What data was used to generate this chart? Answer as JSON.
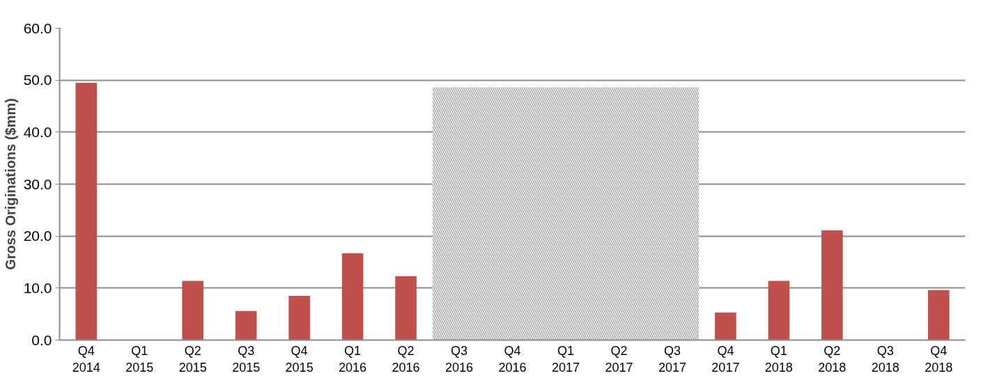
{
  "chart_data": {
    "type": "bar",
    "ylabel": "Gross Originations ($mm)",
    "categories": [
      "Q4\n2014",
      "Q1\n2015",
      "Q2\n2015",
      "Q3\n2015",
      "Q4\n2015",
      "Q1\n2016",
      "Q2\n2016",
      "Q3\n2016",
      "Q4\n2016",
      "Q1\n2017",
      "Q2\n2017",
      "Q3\n2017",
      "Q4\n2017",
      "Q1\n2018",
      "Q2\n2018",
      "Q3\n2018",
      "Q4\n2018"
    ],
    "values": [
      49.5,
      0,
      11.4,
      5.6,
      8.5,
      16.7,
      12.3,
      null,
      null,
      null,
      null,
      null,
      5.3,
      11.4,
      21.1,
      0,
      9.6
    ],
    "color": "#c0504d",
    "ylim": [
      0,
      60
    ],
    "yticks": [
      {
        "value": 0,
        "label": "0.0"
      },
      {
        "value": 10,
        "label": "10.0"
      },
      {
        "value": 20,
        "label": "20.0"
      },
      {
        "value": 30,
        "label": "30.0"
      },
      {
        "value": 40,
        "label": "40.0"
      },
      {
        "value": 50,
        "label": "50.0"
      },
      {
        "value": 60,
        "label": "60.0"
      }
    ],
    "grid": "y",
    "bands": [
      {
        "axis": "x",
        "from": "Q3\n2016",
        "to": "Q3\n2017",
        "color": "#a6a6a6"
      }
    ]
  }
}
